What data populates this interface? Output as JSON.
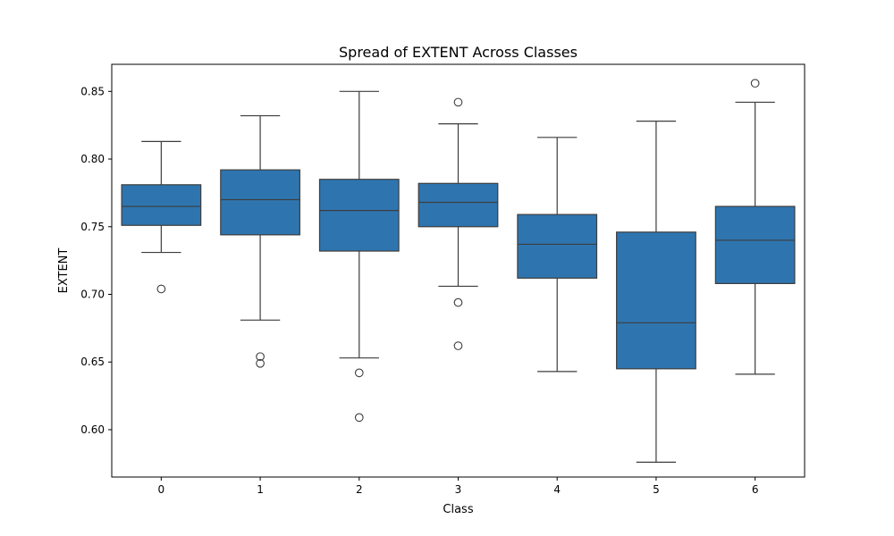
{
  "chart_data": {
    "type": "boxplot",
    "title": "Spread of EXTENT Across Classes",
    "xlabel": "Class",
    "ylabel": "EXTENT",
    "ylim": [
      0.565,
      0.87
    ],
    "yticks": [
      0.6,
      0.65,
      0.7,
      0.75,
      0.8,
      0.85
    ],
    "ytick_labels": [
      "0.60",
      "0.65",
      "0.70",
      "0.75",
      "0.80",
      "0.85"
    ],
    "categories": [
      "0",
      "1",
      "2",
      "3",
      "4",
      "5",
      "6"
    ],
    "box_color": "#2e75b0",
    "line_color": "#3d3d3d",
    "boxes": [
      {
        "category": "0",
        "whisker_low": 0.731,
        "q1": 0.751,
        "median": 0.765,
        "q3": 0.781,
        "whisker_high": 0.813,
        "outliers": [
          0.704
        ]
      },
      {
        "category": "1",
        "whisker_low": 0.681,
        "q1": 0.744,
        "median": 0.77,
        "q3": 0.792,
        "whisker_high": 0.832,
        "outliers": [
          0.654,
          0.649
        ]
      },
      {
        "category": "2",
        "whisker_low": 0.653,
        "q1": 0.732,
        "median": 0.762,
        "q3": 0.785,
        "whisker_high": 0.85,
        "outliers": [
          0.642,
          0.609
        ]
      },
      {
        "category": "3",
        "whisker_low": 0.706,
        "q1": 0.75,
        "median": 0.768,
        "q3": 0.782,
        "whisker_high": 0.826,
        "outliers": [
          0.842,
          0.694,
          0.662
        ]
      },
      {
        "category": "4",
        "whisker_low": 0.643,
        "q1": 0.712,
        "median": 0.737,
        "q3": 0.759,
        "whisker_high": 0.816,
        "outliers": []
      },
      {
        "category": "5",
        "whisker_low": 0.576,
        "q1": 0.645,
        "median": 0.679,
        "q3": 0.746,
        "whisker_high": 0.828,
        "outliers": []
      },
      {
        "category": "6",
        "whisker_low": 0.641,
        "q1": 0.708,
        "median": 0.74,
        "q3": 0.765,
        "whisker_high": 0.842,
        "outliers": [
          0.856
        ]
      }
    ]
  }
}
